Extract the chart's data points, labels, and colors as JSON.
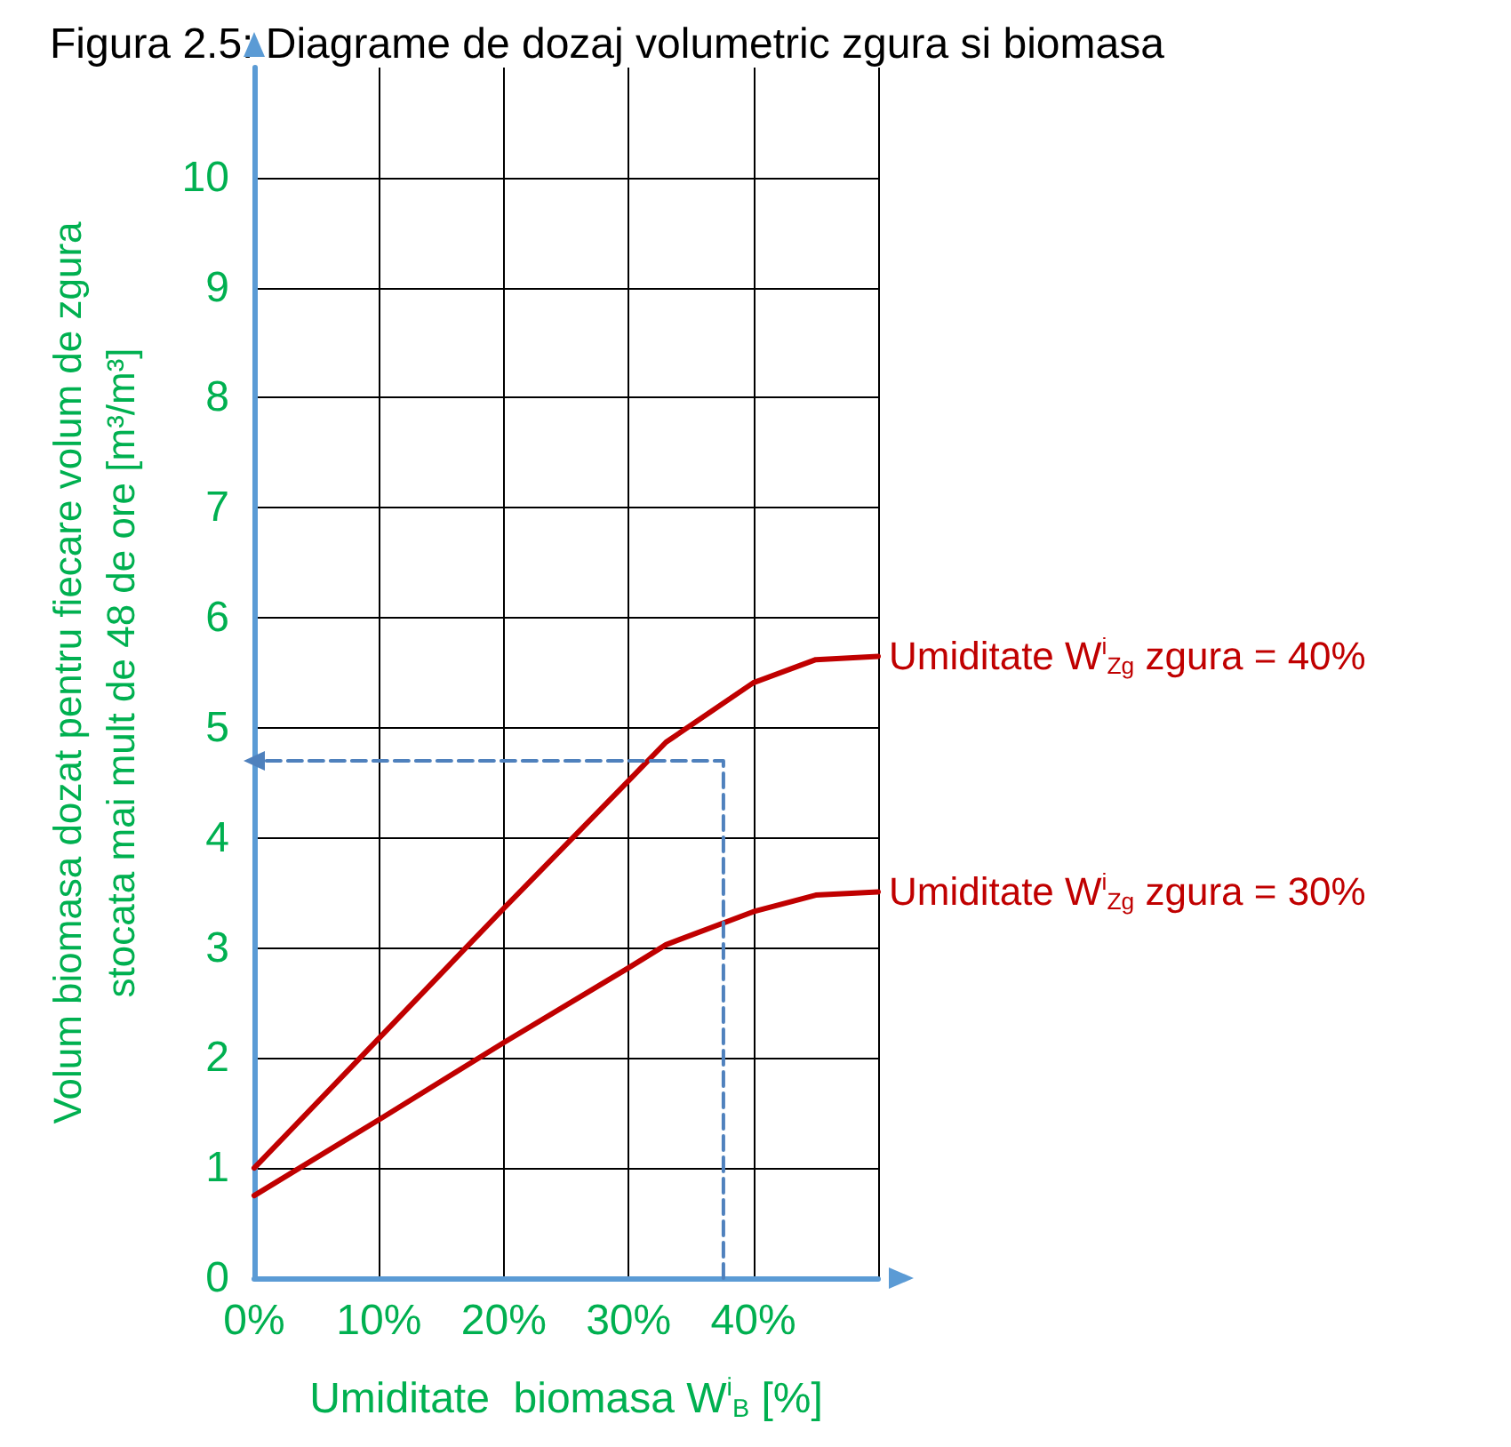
{
  "chart_data": {
    "type": "line",
    "title": "Figura 2.5: Diagrame de dozaj volumetric zgura si biomasa",
    "xlabel": "Umiditate  biomasa W$^{i}$$_{B}$ [%]",
    "ylabel": "Volum biomasa dozat pentru fiecare volum de zgura\nstocata mai mult de 48 de ore [m³/m³]",
    "xlim": [
      0,
      50
    ],
    "xticks": [
      {
        "value": 0,
        "label": "0%"
      },
      {
        "value": 10,
        "label": "10%"
      },
      {
        "value": 20,
        "label": "20%"
      },
      {
        "value": 30,
        "label": "30%"
      },
      {
        "value": 40,
        "label": "40%"
      },
      {
        "value": 50,
        "label": null
      }
    ],
    "ylim": [
      0,
      11
    ],
    "yticks": [
      0,
      1,
      2,
      3,
      4,
      5,
      6,
      7,
      8,
      9,
      10
    ],
    "grid": true,
    "legend": false,
    "marker": "none",
    "series": [
      {
        "name": "Umiditate W$^{i}$$_{Zg}$ zgura = 40%",
        "color": "#c00000",
        "x": [
          0,
          10,
          20,
          30,
          33,
          40,
          45,
          50
        ],
        "values": [
          1.0,
          2.18,
          3.36,
          4.52,
          4.87,
          5.41,
          5.62,
          5.65
        ]
      },
      {
        "name": "Umiditate W$^{i}$$_{Zg}$ zgura = 30%",
        "color": "#c00000",
        "x": [
          0,
          10,
          20,
          30,
          33,
          40,
          45,
          50
        ],
        "values": [
          0.75,
          1.44,
          2.14,
          2.82,
          3.03,
          3.33,
          3.48,
          3.51
        ]
      },
      {
        "color": "#4f81bd",
        "line_style": "dashed",
        "x": [
          37.6,
          37.6,
          0
        ],
        "values": [
          0,
          4.7,
          4.7
        ]
      }
    ]
  }
}
